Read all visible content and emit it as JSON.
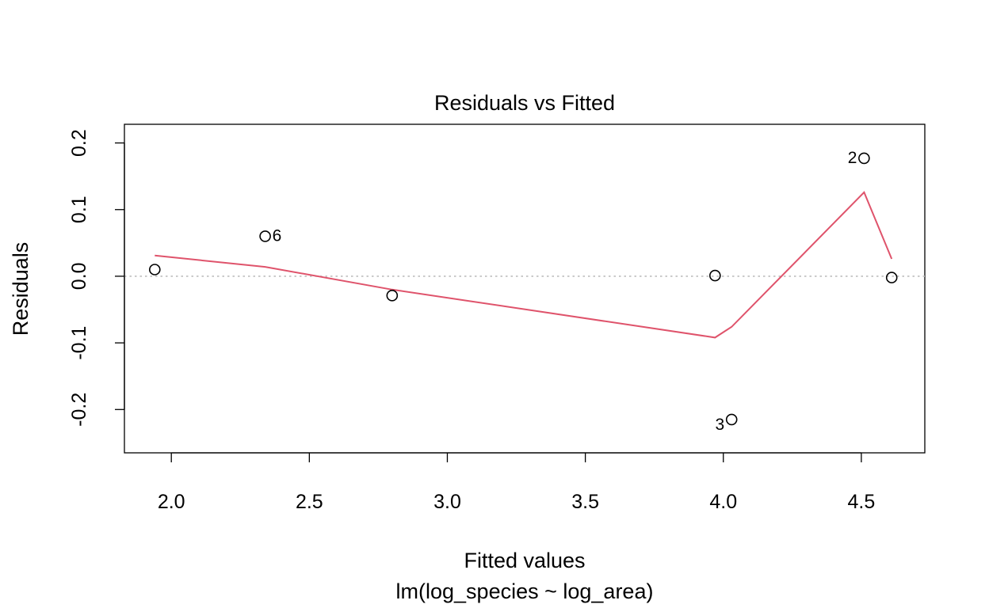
{
  "chart_data": {
    "type": "scatter",
    "title": "Residuals vs Fitted",
    "xlabel": "Fitted values",
    "sublabel": "lm(log_species ~ log_area)",
    "ylabel": "Residuals",
    "xlim": [
      1.83,
      4.73
    ],
    "ylim": [
      -0.265,
      0.228
    ],
    "xticks": [
      2.0,
      2.5,
      3.0,
      3.5,
      4.0,
      4.5
    ],
    "xtick_labels": [
      "2.0",
      "2.5",
      "3.0",
      "3.5",
      "4.0",
      "4.5"
    ],
    "yticks": [
      -0.2,
      -0.1,
      0.0,
      0.1,
      0.2
    ],
    "ytick_labels": [
      "-0.2",
      "-0.1",
      "0.0",
      "0.1",
      "0.2"
    ],
    "reference_line": {
      "y": 0.0,
      "style": "dotted",
      "color": "#bebebe"
    },
    "points": [
      {
        "x": 1.94,
        "y": 0.01,
        "label": ""
      },
      {
        "x": 2.34,
        "y": 0.06,
        "label": "6"
      },
      {
        "x": 2.8,
        "y": -0.029,
        "label": ""
      },
      {
        "x": 3.97,
        "y": 0.001,
        "label": ""
      },
      {
        "x": 4.03,
        "y": -0.215,
        "label": "3"
      },
      {
        "x": 4.51,
        "y": 0.177,
        "label": "2"
      },
      {
        "x": 4.61,
        "y": -0.002,
        "label": ""
      }
    ],
    "smoother": {
      "color": "#df536b",
      "x": [
        1.94,
        2.34,
        2.8,
        3.97,
        4.03,
        4.51,
        4.61
      ],
      "y": [
        0.031,
        0.014,
        -0.02,
        -0.092,
        -0.076,
        0.126,
        0.026
      ]
    },
    "grid": false,
    "legend": "none"
  }
}
